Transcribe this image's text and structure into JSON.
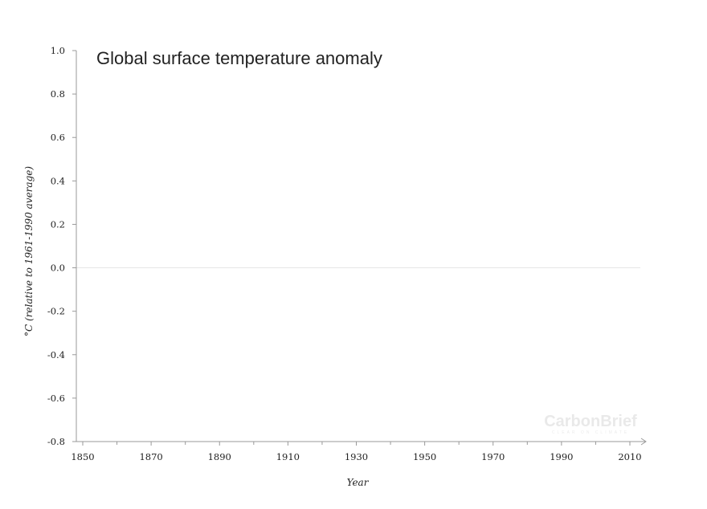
{
  "chart_data": {
    "type": "line",
    "title": "Global surface temperature anomaly",
    "xlabel": "Year",
    "ylabel": "°C (relative to 1961-1990 average)",
    "xlim": [
      1850,
      2015
    ],
    "ylim": [
      -0.8,
      1.0
    ],
    "xticks": [
      1850,
      1870,
      1890,
      1910,
      1930,
      1950,
      1970,
      1990,
      2010
    ],
    "yticks": [
      "1.0",
      "0.8",
      "0.6",
      "0.4",
      "0.2",
      "0.0",
      "-0.2",
      "-0.4",
      "-0.6",
      "-0.8"
    ],
    "series": [],
    "zero_line": true,
    "grid": false,
    "colors": {
      "axis": "#999999",
      "zero_line": "#e6e6e6",
      "text": "#222222"
    }
  },
  "watermark": {
    "brand": "CarbonBrief",
    "tagline": "CLEAR ON CLIMATE"
  }
}
